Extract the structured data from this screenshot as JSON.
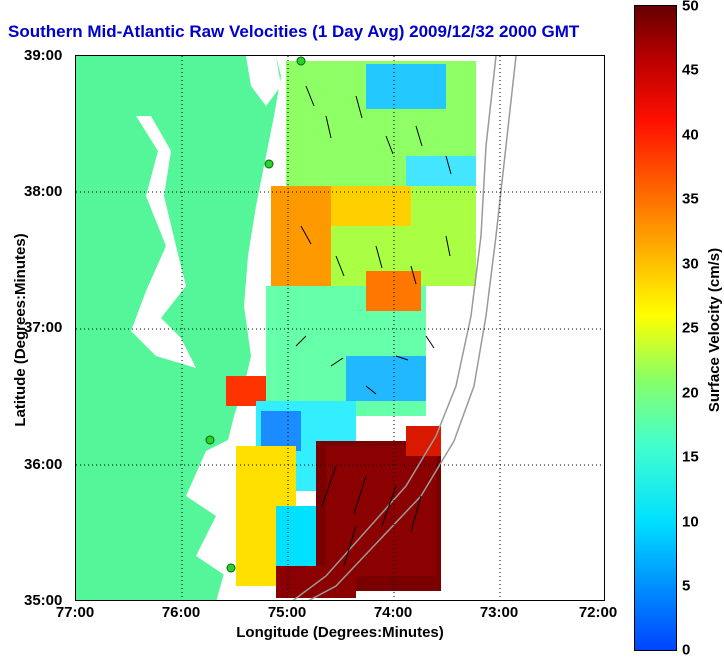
{
  "title": "Southern Mid-Atlantic Raw Velocities (1 Day Avg) 2009/12/32 2000 GMT",
  "axes": {
    "xlabel": "Longitude (Degrees:Minutes)",
    "ylabel": "Latitude (Degrees:Minutes)",
    "xticks": [
      "77:00",
      "76:00",
      "75:00",
      "74:00",
      "73:00",
      "72:00"
    ],
    "yticks": [
      "39:00",
      "38:00",
      "37:00",
      "36:00",
      "35:00"
    ],
    "xlim_deg": [
      -77,
      -72
    ],
    "ylim_deg": [
      35,
      39
    ],
    "grid": true
  },
  "colorbar": {
    "label": "Surface Velocity (cm/s)",
    "ticks": [
      "50",
      "45",
      "40",
      "35",
      "30",
      "25",
      "20",
      "15",
      "10",
      "5",
      "0"
    ],
    "range": [
      0,
      50
    ],
    "colormap": "jet"
  },
  "colors": {
    "land": "#55f59a",
    "title": "#0000cc",
    "station": "#2bd12b",
    "vector": "#000000"
  }
}
